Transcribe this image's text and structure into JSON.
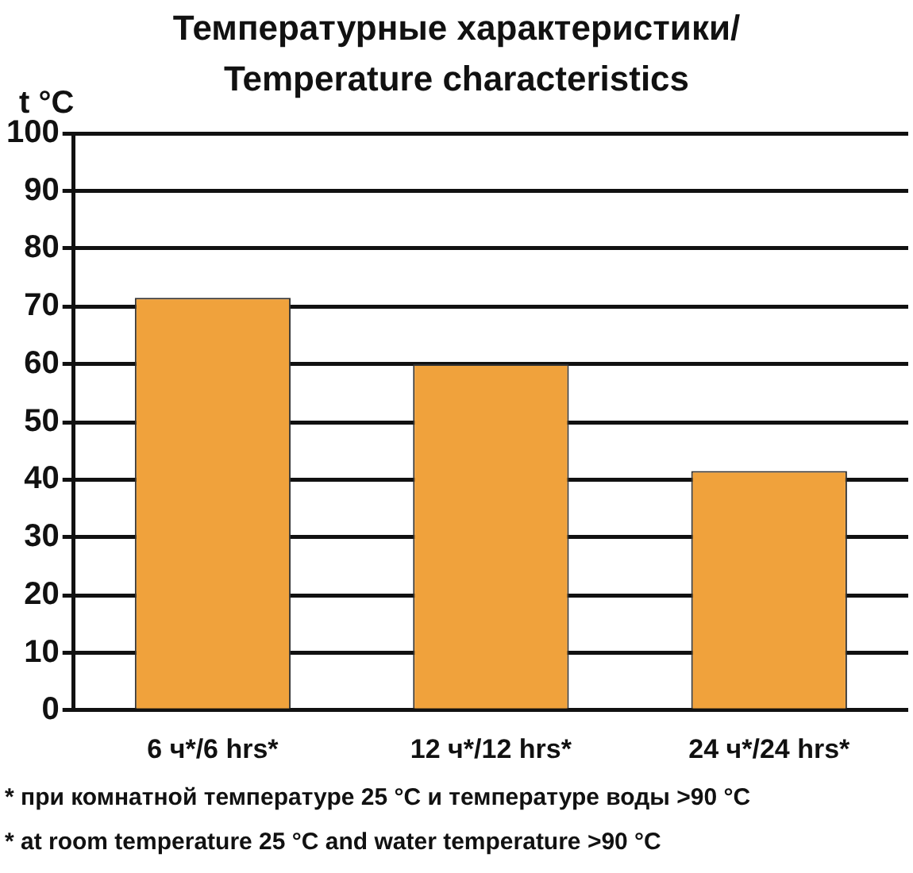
{
  "chart_data": {
    "type": "bar",
    "title": "Температурные характеристики/ Temperature characteristics",
    "ylabel": "t °C",
    "categories": [
      "6 ч*/6 hrs*",
      "12 ч*/12 hrs*",
      "24 ч*/24 hrs*"
    ],
    "series": [
      {
        "color": "#f0a23c",
        "values": [
          71.5,
          60,
          41.5
        ]
      }
    ],
    "ylim": [
      0,
      100
    ],
    "yticks": [
      0,
      10,
      20,
      30,
      40,
      50,
      60,
      70,
      80,
      90,
      100
    ],
    "grid": "y",
    "annotations": [
      "* при комнатной температуре 25 °C и температуре воды >90 °C",
      "* at room temperature 25 °C and water temperature >90 °C"
    ]
  }
}
